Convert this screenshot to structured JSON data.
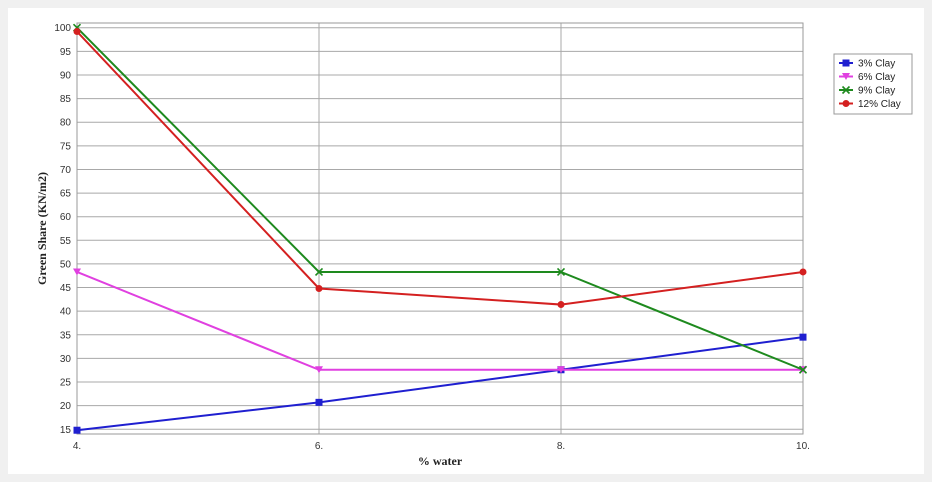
{
  "chart_data": {
    "type": "line",
    "title": "",
    "xlabel": "% water",
    "ylabel": "Green Share (KN/m2)",
    "x": [
      4,
      6,
      8,
      10
    ],
    "x_tick_labels": [
      "4.",
      "6.",
      "8.",
      "10."
    ],
    "ylim": [
      14,
      101
    ],
    "y_ticks": [
      15,
      20,
      25,
      30,
      35,
      40,
      45,
      50,
      55,
      60,
      65,
      70,
      75,
      80,
      85,
      90,
      95,
      100
    ],
    "grid": true,
    "legend_position": "top-right",
    "series": [
      {
        "name": "3% Clay",
        "values": [
          14.8,
          20.7,
          27.6,
          34.5
        ],
        "color": "#1f1fd0",
        "marker": "square"
      },
      {
        "name": "6% Clay",
        "values": [
          48.3,
          27.6,
          27.6,
          27.6
        ],
        "color": "#e040e0",
        "marker": "triangle-down"
      },
      {
        "name": "9% Clay",
        "values": [
          100.0,
          48.3,
          48.3,
          27.6
        ],
        "color": "#1e8a1e",
        "marker": "x"
      },
      {
        "name": "12% Clay",
        "values": [
          99.2,
          44.8,
          41.4,
          48.3
        ],
        "color": "#d42020",
        "marker": "circle"
      }
    ]
  }
}
